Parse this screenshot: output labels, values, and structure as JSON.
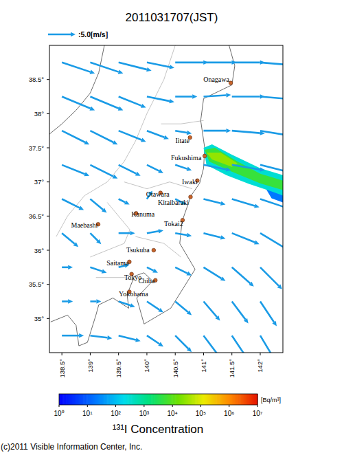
{
  "chart_data": {
    "type": "map",
    "title": "2011031707(JST)",
    "xlim": [
      138.28,
      142.4
    ],
    "ylim": [
      34.5,
      39.0
    ],
    "xticks": [
      {
        "value": 138.5,
        "label": "138.5°"
      },
      {
        "value": 139,
        "label": "139°"
      },
      {
        "value": 139.5,
        "label": "139.5°"
      },
      {
        "value": 140,
        "label": "140°"
      },
      {
        "value": 140.5,
        "label": "140.5°"
      },
      {
        "value": 141,
        "label": "141°"
      },
      {
        "value": 141.5,
        "label": "141.5°"
      },
      {
        "value": 142,
        "label": "142°"
      }
    ],
    "yticks": [
      {
        "value": 35,
        "label": "35°"
      },
      {
        "value": 35.5,
        "label": "35.5°"
      },
      {
        "value": 36,
        "label": "36°"
      },
      {
        "value": 36.5,
        "label": "36.5°"
      },
      {
        "value": 37,
        "label": "37°"
      },
      {
        "value": 37.5,
        "label": "37.5°"
      },
      {
        "value": 38,
        "label": "38°"
      },
      {
        "value": 38.5,
        "label": "38.5°"
      }
    ],
    "reference_arrow": {
      "value": 5.0,
      "label": ":5.0[m/s]"
    },
    "wind": {
      "lon": [
        138.5,
        139.0,
        139.5,
        140.0,
        140.5,
        141.0,
        141.5,
        142.0
      ],
      "lat": [
        38.75,
        38.25,
        37.75,
        37.25,
        36.75,
        36.25,
        35.75,
        35.25,
        34.75
      ],
      "u": [
        [
          6,
          6,
          6,
          5,
          6,
          6,
          6,
          6
        ],
        [
          6,
          6,
          5,
          5,
          4,
          5,
          6,
          6
        ],
        [
          5,
          5,
          5,
          4,
          3,
          5,
          6,
          6
        ],
        [
          5,
          5,
          4,
          3,
          3,
          5,
          6,
          6
        ],
        [
          4,
          3,
          2,
          1,
          2,
          4,
          5,
          6
        ],
        [
          3,
          2,
          3,
          3,
          3,
          4,
          5,
          5
        ],
        [
          2,
          3,
          2,
          2,
          3,
          4,
          4,
          4
        ],
        [
          2,
          2,
          3,
          3,
          3,
          3,
          3,
          3
        ],
        [
          4,
          4,
          4,
          3,
          3,
          3,
          3,
          3
        ]
      ],
      "v": [
        [
          -2,
          -2,
          -1.5,
          -1,
          0,
          0,
          0,
          -0.5
        ],
        [
          -2.5,
          -2.5,
          -2,
          -1,
          0,
          0.3,
          0,
          -0.5
        ],
        [
          -2.5,
          -2.5,
          -2,
          -1.5,
          -0.5,
          0,
          -0.5,
          -1
        ],
        [
          -2,
          -2.5,
          -2,
          -1.5,
          -1,
          -1,
          -1,
          -1.5
        ],
        [
          -2,
          -2.5,
          -1,
          1.5,
          -1,
          -1,
          -1.5,
          -2
        ],
        [
          -2.5,
          -2,
          0,
          0.5,
          -0.5,
          -1,
          -2,
          -3
        ],
        [
          0,
          -1,
          0.5,
          -1,
          -1.5,
          -2.5,
          -3.5,
          -4
        ],
        [
          0,
          0,
          -1,
          -2,
          -2.5,
          -3.5,
          -4,
          -4.5
        ],
        [
          0,
          -0.5,
          -1,
          -2,
          -3,
          -4,
          -4.5,
          -5
        ]
      ]
    },
    "sites": [
      {
        "name": "Onagawa",
        "lon": 141.48,
        "lat": 38.45
      },
      {
        "name": "Iitate",
        "lon": 140.76,
        "lat": 37.65
      },
      {
        "name": "Fukushima",
        "lon": 141.02,
        "lat": 37.38
      },
      {
        "name": "Iwaki",
        "lon": 140.89,
        "lat": 37.02
      },
      {
        "name": "Otawara",
        "lon": 140.24,
        "lat": 36.84
      },
      {
        "name": "Kitaibaraki",
        "lon": 140.77,
        "lat": 36.78
      },
      {
        "name": "Kanuma",
        "lon": 139.81,
        "lat": 36.54
      },
      {
        "name": "Maebashi",
        "lon": 139.14,
        "lat": 36.38
      },
      {
        "name": "Tokai2",
        "lon": 140.63,
        "lat": 36.44
      },
      {
        "name": "Tsukuba",
        "lon": 140.12,
        "lat": 36.0
      },
      {
        "name": "Saitama",
        "lon": 139.69,
        "lat": 35.83
      },
      {
        "name": "Tokyo",
        "lon": 139.73,
        "lat": 35.65
      },
      {
        "name": "Chiba",
        "lon": 140.15,
        "lat": 35.56
      },
      {
        "name": "Yokohama",
        "lon": 139.69,
        "lat": 35.39
      }
    ],
    "plume": [
      {
        "value": 20,
        "polygon": [
          [
            142.1,
            36.9
          ],
          [
            142.4,
            36.82
          ],
          [
            142.4,
            36.7
          ],
          [
            142.2,
            36.76
          ]
        ]
      },
      {
        "value": 300,
        "polygon": [
          [
            141.0,
            37.5
          ],
          [
            141.15,
            37.55
          ],
          [
            141.5,
            37.4
          ],
          [
            142.0,
            37.2
          ],
          [
            142.4,
            37.1
          ],
          [
            142.4,
            36.8
          ],
          [
            142.2,
            36.86
          ],
          [
            141.8,
            36.97
          ],
          [
            141.4,
            37.1
          ],
          [
            141.05,
            37.25
          ]
        ]
      },
      {
        "value": 5000,
        "polygon": [
          [
            141.02,
            37.47
          ],
          [
            141.2,
            37.5
          ],
          [
            141.6,
            37.3
          ],
          [
            142.0,
            37.12
          ],
          [
            142.4,
            37.02
          ],
          [
            142.4,
            36.88
          ],
          [
            142.0,
            36.98
          ],
          [
            141.5,
            37.15
          ],
          [
            141.1,
            37.3
          ]
        ]
      },
      {
        "value": 30000,
        "polygon": [
          [
            141.05,
            37.43
          ],
          [
            141.3,
            37.43
          ],
          [
            141.6,
            37.27
          ],
          [
            141.5,
            37.22
          ],
          [
            141.15,
            37.33
          ]
        ]
      }
    ],
    "colorbar": {
      "range": [
        1,
        10000000
      ],
      "log": true,
      "ticks": [
        {
          "value": 1,
          "label": "10⁰"
        },
        {
          "value": 10,
          "label": "10¹"
        },
        {
          "value": 100,
          "label": "10²"
        },
        {
          "value": 1000,
          "label": "10³"
        },
        {
          "value": 10000,
          "label": "10⁴"
        },
        {
          "value": 100000,
          "label": "10⁵"
        },
        {
          "value": 1000000,
          "label": "10⁶"
        },
        {
          "value": 10000000,
          "label": "10⁷"
        }
      ],
      "unit": "[Bq/m³]",
      "label": "¹³¹I Concentration"
    },
    "credit": "(c)2011 Visible Information Center, Inc."
  }
}
